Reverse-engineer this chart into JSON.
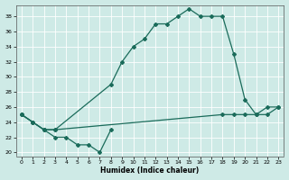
{
  "xlabel": "Humidex (Indice chaleur)",
  "xlim": [
    -0.5,
    23.5
  ],
  "ylim": [
    19.5,
    39.5
  ],
  "yticks": [
    20,
    22,
    24,
    26,
    28,
    30,
    32,
    34,
    36,
    38
  ],
  "xticks": [
    0,
    1,
    2,
    3,
    4,
    5,
    6,
    7,
    8,
    9,
    10,
    11,
    12,
    13,
    14,
    15,
    16,
    17,
    18,
    19,
    20,
    21,
    22,
    23
  ],
  "bg_color": "#ceeae6",
  "line_color": "#1a6b5a",
  "line1_x": [
    0,
    1,
    2,
    3,
    4,
    5,
    6,
    7,
    8
  ],
  "line1_y": [
    25,
    24,
    23,
    22,
    22,
    21,
    21,
    20,
    23
  ],
  "line2_x": [
    0,
    1,
    2,
    3,
    8,
    9,
    10,
    11,
    12,
    13,
    14,
    15,
    16,
    17,
    18,
    19,
    20,
    21,
    22,
    23
  ],
  "line2_y": [
    25,
    24,
    23,
    23,
    29,
    32,
    34,
    35,
    37,
    37,
    38,
    39,
    38,
    38,
    38,
    33,
    27,
    25,
    26,
    26
  ],
  "line3_x": [
    0,
    1,
    2,
    3,
    18,
    19,
    20,
    21,
    22,
    23
  ],
  "line3_y": [
    25,
    24,
    23,
    23,
    25,
    25,
    25,
    25,
    25,
    26
  ]
}
